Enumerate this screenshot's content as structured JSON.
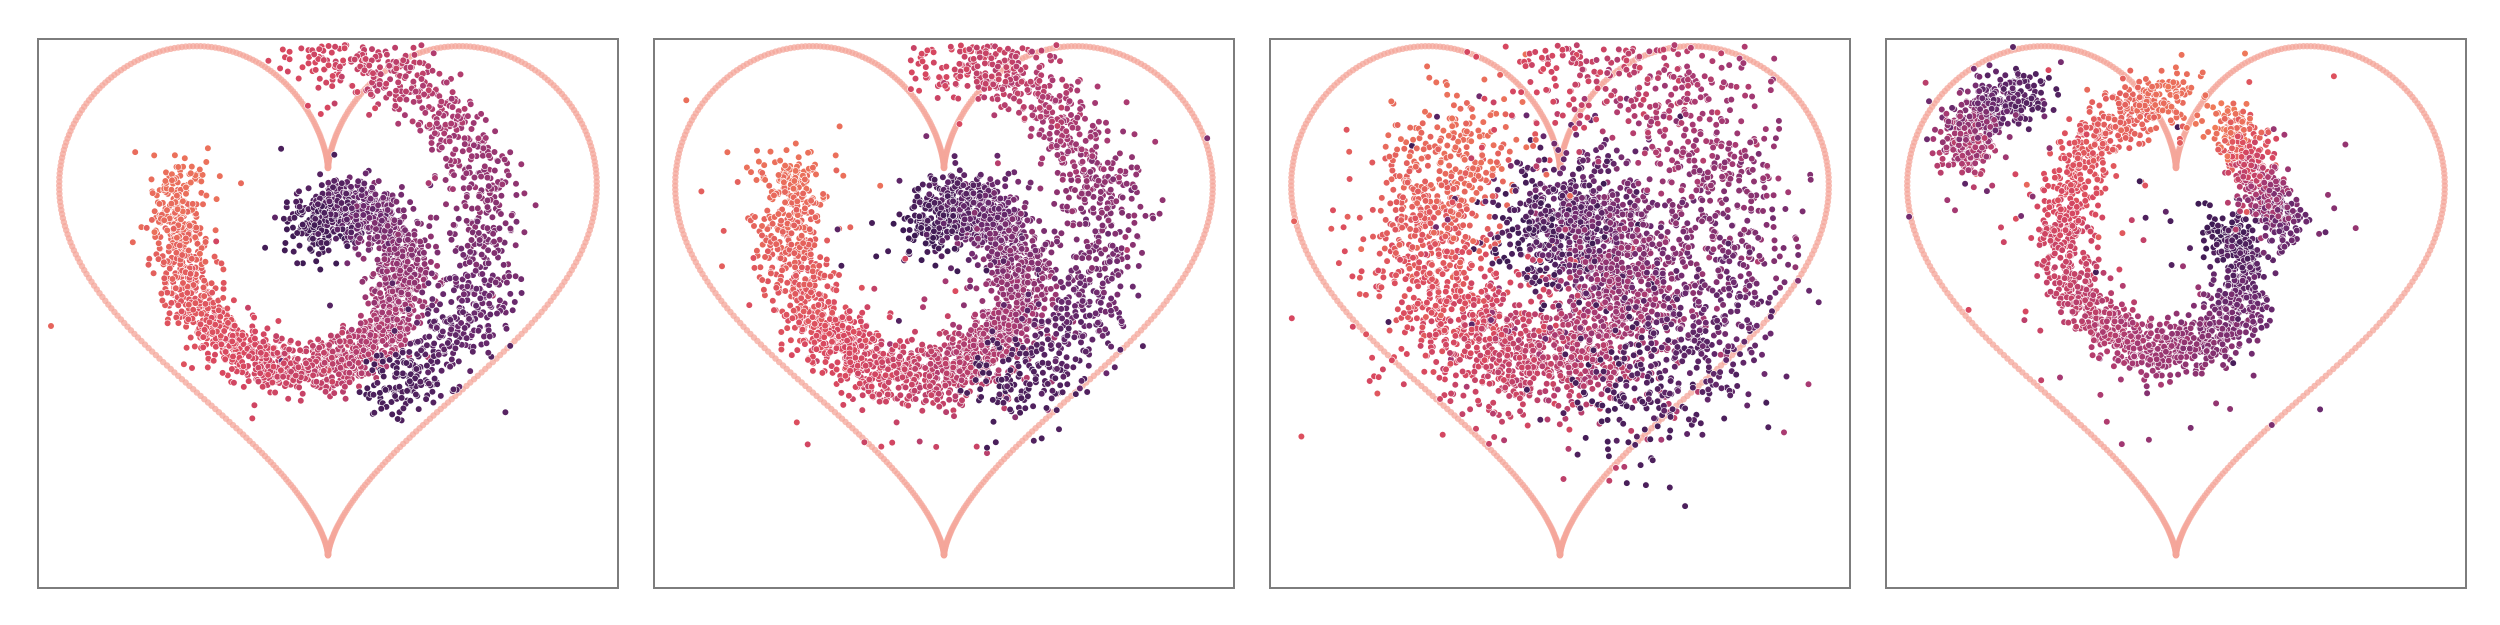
{
  "chart_data": [
    {
      "type": "scatter",
      "title": "",
      "xlabel": "",
      "ylabel": "",
      "grid": false,
      "legend": "none",
      "boundary": "heart",
      "boundary_color": "#f4a59a",
      "colormap": [
        "#3b1a52",
        "#6b2a6e",
        "#a83a72",
        "#d9485f",
        "#f07c5a"
      ],
      "pattern": "spiral-clean",
      "outer_arm": true,
      "n_points": 3200
    },
    {
      "type": "scatter",
      "title": "",
      "xlabel": "",
      "ylabel": "",
      "grid": false,
      "legend": "none",
      "boundary": "heart",
      "boundary_color": "#f4a59a",
      "colormap": [
        "#3b1a52",
        "#6b2a6e",
        "#a83a72",
        "#d9485f",
        "#f07c5a"
      ],
      "pattern": "spiral-wider",
      "outer_arm": true,
      "n_points": 3400
    },
    {
      "type": "scatter",
      "title": "",
      "xlabel": "",
      "ylabel": "",
      "grid": false,
      "legend": "none",
      "boundary": "heart",
      "boundary_color": "#f4a59a",
      "colormap": [
        "#3b1a52",
        "#6b2a6e",
        "#a83a72",
        "#d9485f",
        "#f07c5a"
      ],
      "pattern": "spiral-diffuse",
      "outer_arm": true,
      "n_points": 3800
    },
    {
      "type": "scatter",
      "title": "",
      "xlabel": "",
      "ylabel": "",
      "grid": false,
      "legend": "none",
      "boundary": "heart",
      "boundary_color": "#f4a59a",
      "colormap": [
        "#3b1a52",
        "#6b2a6e",
        "#a83a72",
        "#d9485f",
        "#f07c5a"
      ],
      "pattern": "spiral-fragmented",
      "outer_arm": false,
      "n_points": 2600
    }
  ]
}
